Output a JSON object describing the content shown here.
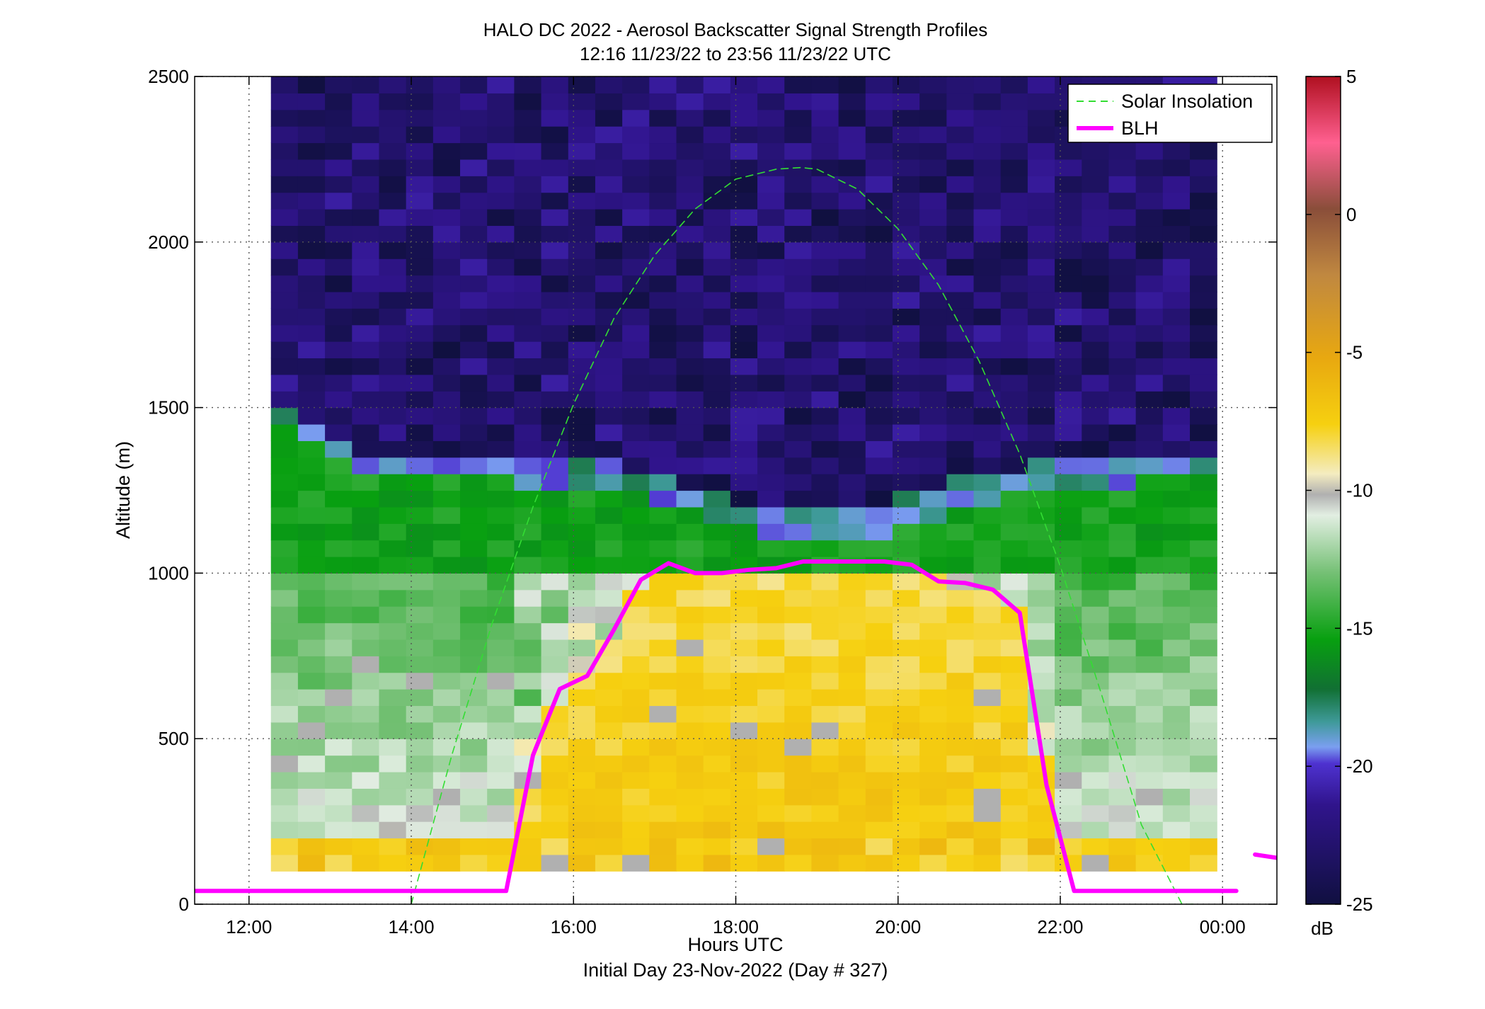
{
  "chart_data": {
    "type": "heatmap",
    "title": "HALO DC 2022 - Aerosol Backscatter Signal Strength Profiles",
    "subtitle": "12:16 11/23/22 to 23:56 11/23/22  UTC",
    "xlabel": "Hours UTC",
    "xlabel2": "Initial Day 23-Nov-2022 (Day # 327)",
    "ylabel": "Altitude (m)",
    "x_unit": "hours UTC",
    "xlim": [
      11.33,
      24.67
    ],
    "ylim": [
      0,
      2500
    ],
    "x_ticks": [
      12,
      14,
      16,
      18,
      20,
      22,
      24
    ],
    "x_tick_labels": [
      "12:00",
      "14:00",
      "16:00",
      "18:00",
      "20:00",
      "22:00",
      "00:00"
    ],
    "y_ticks": [
      0,
      500,
      1000,
      1500,
      2000,
      2500
    ],
    "y_tick_labels": [
      "0",
      "500",
      "1000",
      "1500",
      "2000",
      "2500"
    ],
    "grid": true,
    "legend_position": "top-right",
    "heatmap": {
      "time_start": 12.27,
      "time_end": 23.93,
      "alt_start": 100,
      "alt_end": 2500,
      "cell_height_m": 50,
      "n_cols": 35
    },
    "colorbar": {
      "range": [
        -25,
        5
      ],
      "ticks": [
        5,
        0,
        -5,
        -10,
        -15,
        -20,
        -25
      ],
      "tick_labels": [
        "5",
        "0",
        "-5",
        "-10",
        "-15",
        "-20",
        "-25"
      ],
      "unit": "dB"
    },
    "series": [
      {
        "name": "Solar Insolation",
        "style": "dashed",
        "color": "#33dd33",
        "x": [
          14.0,
          14.5,
          15.0,
          15.5,
          16.0,
          16.5,
          17.0,
          17.5,
          18.0,
          18.5,
          18.8,
          19.0,
          19.5,
          20.0,
          20.5,
          21.0,
          21.5,
          22.0,
          22.5,
          23.0,
          23.5,
          23.7
        ],
        "y": [
          0,
          450,
          850,
          1200,
          1510,
          1770,
          1960,
          2100,
          2190,
          2220,
          2225,
          2220,
          2160,
          2040,
          1870,
          1640,
          1360,
          1020,
          640,
          240,
          0,
          0
        ]
      },
      {
        "name": "BLH",
        "style": "solid",
        "color": "#ff00ff",
        "x": [
          11.33,
          12.0,
          13.0,
          14.0,
          15.0,
          15.17,
          15.5,
          15.83,
          16.17,
          16.5,
          16.83,
          17.17,
          17.5,
          17.83,
          18.17,
          18.5,
          18.83,
          19.17,
          19.5,
          19.83,
          20.17,
          20.5,
          20.83,
          21.17,
          21.5,
          21.83,
          22.17,
          22.5,
          23.0,
          23.5,
          24.0,
          24.17
        ],
        "y": [
          40,
          40,
          40,
          40,
          40,
          40,
          450,
          650,
          690,
          830,
          980,
          1030,
          1000,
          1000,
          1010,
          1015,
          1035,
          1035,
          1035,
          1035,
          1025,
          975,
          970,
          950,
          880,
          360,
          40,
          40,
          40,
          40,
          40,
          40
        ]
      },
      {
        "name": "BLH-next",
        "style": "solid",
        "color": "#ff00ff",
        "x": [
          24.4,
          24.67
        ],
        "y": [
          150,
          140
        ]
      }
    ]
  },
  "colors": {
    "solar": "#33dd33",
    "blh": "#ff00ff",
    "axis": "#000000",
    "grid": "#555555",
    "saturated_cell": "#aaaaaa"
  }
}
